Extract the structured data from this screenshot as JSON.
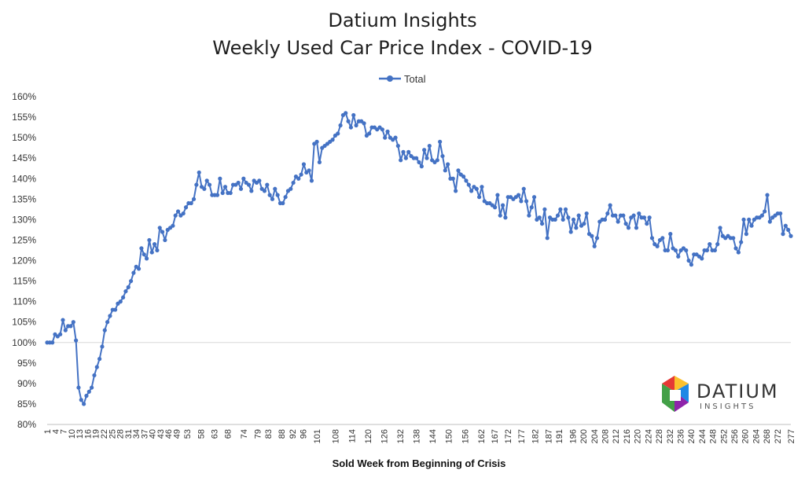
{
  "chart_data": {
    "type": "line",
    "title_lines": [
      "Datium Insights",
      "Weekly Used Car Price Index - COVID-19"
    ],
    "xlabel": "Sold Week from Beginning of Crisis",
    "ylabel": "",
    "ylim": [
      80,
      160
    ],
    "ytick_labels": [
      "80%",
      "85%",
      "90%",
      "95%",
      "100%",
      "105%",
      "110%",
      "115%",
      "120%",
      "125%",
      "130%",
      "135%",
      "140%",
      "145%",
      "150%",
      "155%",
      "160%"
    ],
    "reference_line": 100,
    "legend": {
      "position": "top-center",
      "entries": [
        "Total"
      ]
    },
    "series": [
      {
        "name": "Total",
        "color": "#4472c4",
        "values": [
          100,
          100,
          100,
          102,
          101.5,
          102,
          105.5,
          103,
          104,
          104,
          105,
          100.5,
          89,
          86,
          85,
          87,
          88,
          89,
          92,
          94,
          96,
          99,
          103,
          105,
          106.5,
          108,
          108,
          109.5,
          110,
          111,
          112.5,
          113.5,
          115,
          117,
          118.5,
          118,
          123,
          121.5,
          120.5,
          125,
          122,
          124,
          122.5,
          128,
          127,
          125,
          127.5,
          128,
          128.5,
          131,
          132,
          131,
          131.5,
          133,
          134,
          134,
          135,
          138.5,
          141.5,
          138,
          137.5,
          139.5,
          138.5,
          136,
          136,
          136,
          140,
          136.5,
          138,
          136.5,
          136.5,
          138.5,
          138.5,
          139,
          137.5,
          140,
          139,
          138.5,
          137,
          139.5,
          139,
          139.5,
          137.5,
          137,
          138.5,
          136,
          135,
          137.5,
          136,
          134,
          134,
          135.5,
          137,
          137.5,
          139,
          140.5,
          140,
          141,
          143.5,
          141.5,
          142,
          139.5,
          148.5,
          149,
          144,
          147.5,
          148,
          148.5,
          149,
          149.5,
          150.5,
          151,
          153,
          155.5,
          156,
          154,
          152.5,
          155.5,
          153,
          154,
          154,
          153.5,
          150.5,
          151,
          152.5,
          152.5,
          152,
          152.5,
          152,
          150,
          151.5,
          150,
          149.5,
          150,
          148,
          144.5,
          146.5,
          145,
          146.5,
          145.5,
          145,
          145,
          144,
          143,
          147,
          145,
          148,
          144.5,
          144,
          144.5,
          149,
          145.5,
          142,
          143.5,
          140,
          140,
          137,
          142,
          141,
          140.5,
          139.5,
          138.5,
          137,
          138,
          137.5,
          135.5,
          138,
          134.5,
          134,
          134,
          133.5,
          133,
          136,
          131,
          133.5,
          130.5,
          135.5,
          135.5,
          135,
          135.5,
          136,
          134.5,
          137.5,
          134.5,
          131,
          133,
          135.5,
          130,
          130.5,
          129,
          132.5,
          125.5,
          130.5,
          130,
          130,
          131,
          132.5,
          130,
          132.5,
          130.5,
          127,
          130,
          128,
          131,
          128.5,
          129,
          131.5,
          126.5,
          126,
          123.5,
          125.5,
          129.5,
          130,
          130,
          131.5,
          133.5,
          131,
          131,
          129.5,
          131,
          131,
          129,
          128,
          130.5,
          131,
          128,
          131.5,
          130.5,
          130.5,
          129,
          130.5,
          125.5,
          124,
          123.5,
          125,
          125.5,
          122.5,
          122.5,
          126.5,
          123,
          122.5,
          121,
          122.5,
          123,
          122.5,
          120,
          119,
          121.5,
          121.5,
          121,
          120.5,
          122.5,
          122.5,
          124,
          122.5,
          122.5,
          124,
          128,
          126,
          125.5,
          126,
          125.5,
          125.5,
          123,
          122,
          124.5,
          130,
          126.5,
          130,
          128.5,
          130,
          130.5,
          130.5,
          131,
          132,
          136,
          129.5,
          130.5,
          131,
          131.5,
          131.5,
          126.5,
          128.5,
          127.5,
          126
        ]
      }
    ],
    "x_tick_labels": [
      "1",
      "4",
      "7",
      "10",
      "13",
      "16",
      "19",
      "22",
      "25",
      "28",
      "31",
      "34",
      "37",
      "40",
      "43",
      "46",
      "49",
      "53",
      "58",
      "63",
      "68",
      "74",
      "79",
      "83",
      "88",
      "92",
      "96",
      "101",
      "108",
      "114",
      "120",
      "126",
      "132",
      "138",
      "144",
      "150",
      "156",
      "162",
      "167",
      "172",
      "177",
      "182",
      "187",
      "191",
      "196",
      "200",
      "204",
      "208",
      "212",
      "216",
      "220",
      "224",
      "228",
      "232",
      "236",
      "240",
      "244",
      "248",
      "252",
      "256",
      "260",
      "264",
      "268",
      "272",
      "277"
    ],
    "x_axis_max": 277
  },
  "brand": {
    "name": "DATIUM",
    "sub": "INSIGHTS",
    "colors": [
      "#e53935",
      "#fbc02d",
      "#43a047",
      "#1e88e5",
      "#8e24aa"
    ]
  }
}
